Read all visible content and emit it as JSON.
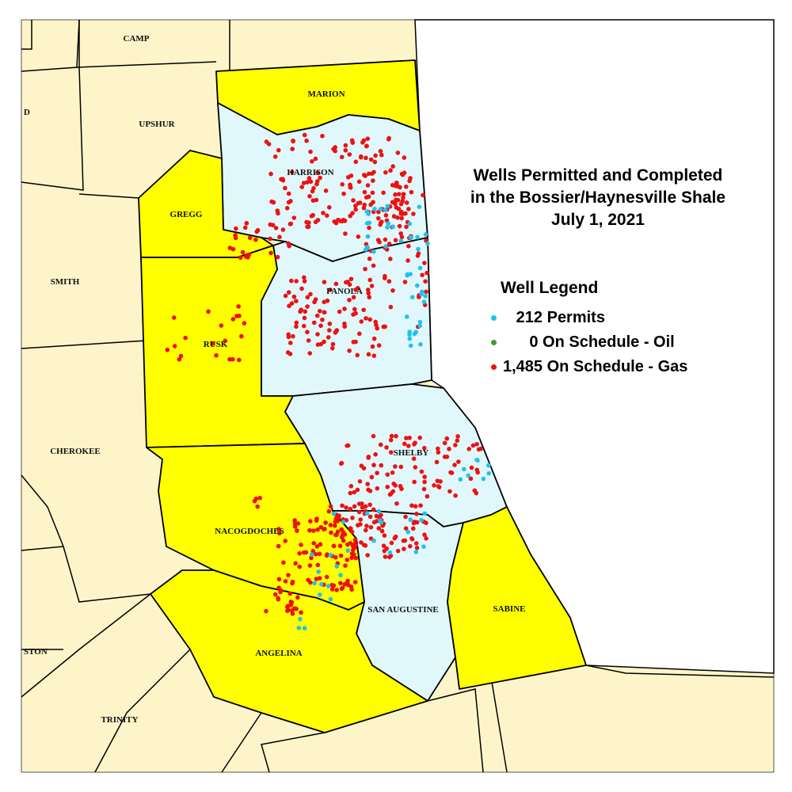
{
  "title": {
    "line1": "Wells Permitted and Completed",
    "line2": "in the Bossier/Haynesville Shale",
    "line3": "July 1, 2021"
  },
  "legend": {
    "title": "Well Legend",
    "items": [
      {
        "label": "212 Permits",
        "count": 212,
        "color": "#1ec3ef",
        "indent": "   "
      },
      {
        "label": "0 On Schedule - Oil",
        "count": 0,
        "color": "#3aa02a",
        "indent": "      "
      },
      {
        "label": "1,485 On Schedule - Gas",
        "count": 1485,
        "color": "#ee1111",
        "indent": ""
      }
    ]
  },
  "colors": {
    "background_county": "#fdf5c9",
    "highlight_county": "#ffff00",
    "active_county": "#e0f8fc",
    "outside": "#ffffff"
  },
  "counties": {
    "camp": "CAMP",
    "upshur": "UPSHUR",
    "marion": "MARION",
    "harrison": "HARRISON",
    "gregg": "GREGG",
    "smith": "SMITH",
    "panola": "PANOLA",
    "rusk": "RUSK",
    "cherokee": "CHEROKEE",
    "shelby": "SHELBY",
    "nacogdoches": "NACOGDOCHES",
    "san_augustine": "SAN AUGUSTINE",
    "sabine": "SABINE",
    "angelina": "ANGELINA",
    "trinity": "TRINITY",
    "partial_west_1": "D",
    "partial_west_2": "STON"
  }
}
